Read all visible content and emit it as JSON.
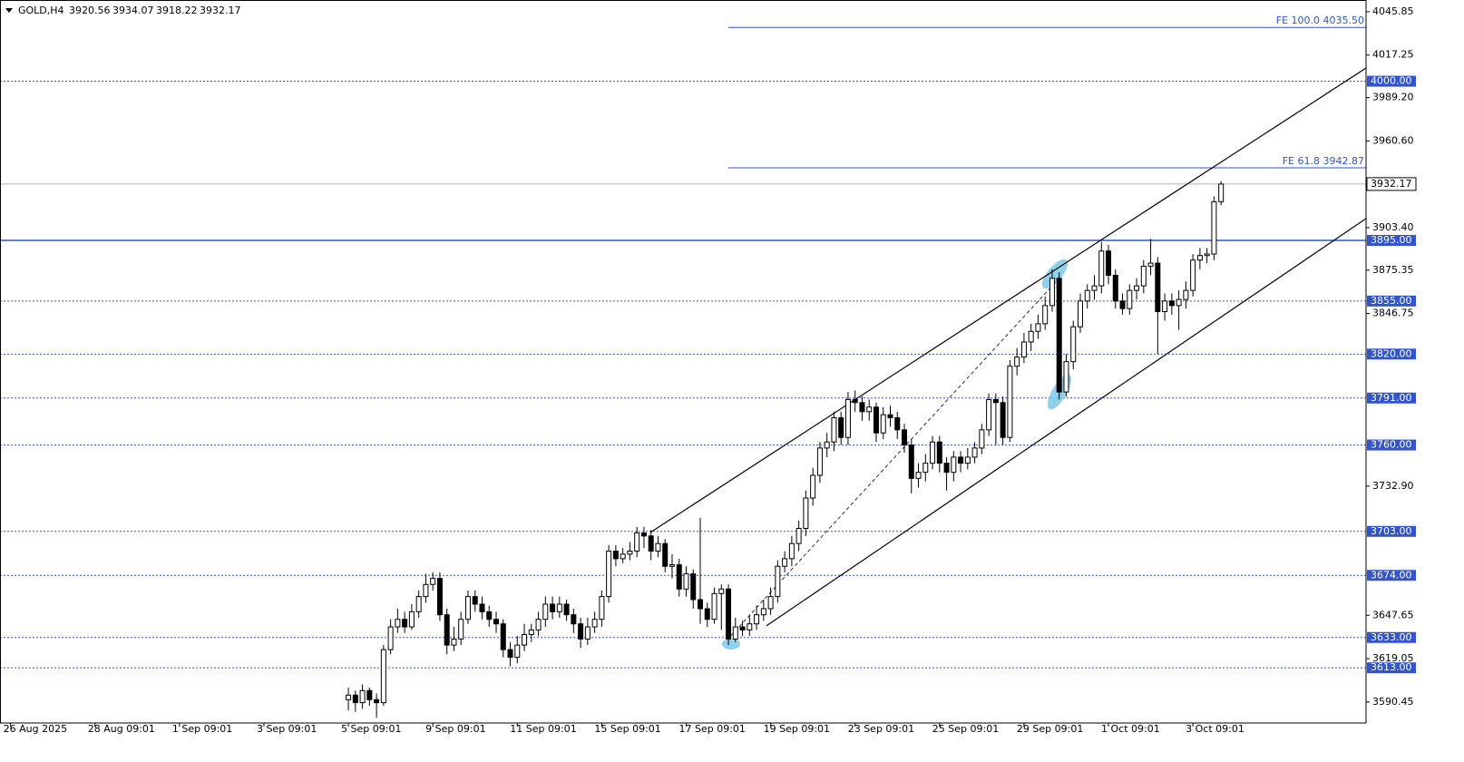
{
  "chart_data": {
    "type": "candlestick",
    "title": "GOLD,H4",
    "bull_color": "#ffffff",
    "bear_color": "#000000",
    "level_color": "#3355cc",
    "xlim": [
      -49.5,
      144.6
    ],
    "ylim": [
      3576.6,
      4053.6
    ],
    "xticks": [
      {
        "value": -48,
        "label": "26 Aug 2025"
      },
      {
        "value": -36,
        "label": "28 Aug 09:01"
      },
      {
        "value": -24,
        "label": "1 Sep 09:01"
      },
      {
        "value": -12,
        "label": "3 Sep 09:01"
      },
      {
        "value": 0,
        "label": "5 Sep 09:01"
      },
      {
        "value": 12,
        "label": "9 Sep 09:01"
      },
      {
        "value": 24,
        "label": "11 Sep 09:01"
      },
      {
        "value": 36,
        "label": "15 Sep 09:01"
      },
      {
        "value": 48,
        "label": "17 Sep 09:01"
      },
      {
        "value": 60,
        "label": "19 Sep 09:01"
      },
      {
        "value": 72,
        "label": "23 Sep 09:01"
      },
      {
        "value": 84,
        "label": "25 Sep 09:01"
      },
      {
        "value": 96,
        "label": "29 Sep 09:01"
      },
      {
        "value": 108,
        "label": "1 Oct 09:01"
      },
      {
        "value": 120,
        "label": "3 Oct 09:01"
      }
    ],
    "yticks": [
      4045.85,
      4017.25,
      {
        "value": 3989.2,
        "label": "3989.20"
      },
      {
        "value": 3960.6,
        "label": "3960.60"
      },
      {
        "value": 3903.4,
        "label": "3903.40"
      },
      3875.35,
      3846.75,
      {
        "value": 3732.9,
        "label": "3732.90"
      },
      3647.65,
      3619.05,
      3590.45
    ],
    "levels": [
      {
        "value": 4000,
        "label": "4000.00",
        "style": "dotted"
      },
      {
        "value": 3895,
        "label": "3895.00",
        "style": "solid"
      },
      {
        "value": 3855,
        "label": "3855.00",
        "style": "dotted"
      },
      {
        "value": 3820,
        "label": "3820.00",
        "style": "dotted"
      },
      {
        "value": 3791,
        "label": "3791.00",
        "style": "dotted"
      },
      {
        "value": 3760,
        "label": "3760.00",
        "style": "dotted"
      },
      {
        "value": 3703,
        "label": "3703.00",
        "style": "dotted"
      },
      {
        "value": 3674,
        "label": "3674.00",
        "style": "dotted"
      },
      {
        "value": 3633,
        "label": "3633.00",
        "style": "dotted"
      },
      {
        "value": 3613,
        "label": "3613.00",
        "style": "dotted"
      }
    ],
    "fib_levels": [
      {
        "value": 4035.5,
        "label": "FE 100.0 4035.50"
      },
      {
        "value": 3942.87,
        "label": "FE 61.8 3942.87"
      }
    ],
    "channel": {
      "upper": [
        [
          42.9,
          3702.3
        ],
        [
          144.6,
          4008.7
        ]
      ],
      "lower": [
        [
          59.4,
          3640.7
        ],
        [
          144.6,
          3909.4
        ]
      ],
      "dashed": [
        [
          54.3,
          3634
        ],
        [
          100.6,
          3868
        ]
      ]
    },
    "ohlc": [
      [
        3592,
        3600,
        3585,
        3595
      ],
      [
        3595,
        3598,
        3584,
        3590
      ],
      [
        3590,
        3602,
        3586,
        3598
      ],
      [
        3598,
        3600,
        3588,
        3592
      ],
      [
        3592,
        3596,
        3580,
        3590
      ],
      [
        3590,
        3628,
        3588,
        3625
      ],
      [
        3625,
        3645,
        3622,
        3640
      ],
      [
        3640,
        3652,
        3636,
        3645
      ],
      [
        3645,
        3650,
        3636,
        3640
      ],
      [
        3640,
        3655,
        3638,
        3650
      ],
      [
        3650,
        3664,
        3646,
        3660
      ],
      [
        3660,
        3675,
        3656,
        3668
      ],
      [
        3668,
        3676,
        3664,
        3672
      ],
      [
        3672,
        3676,
        3644,
        3648
      ],
      [
        3648,
        3652,
        3622,
        3628
      ],
      [
        3628,
        3640,
        3624,
        3632
      ],
      [
        3632,
        3650,
        3628,
        3645
      ],
      [
        3645,
        3664,
        3642,
        3660
      ],
      [
        3660,
        3664,
        3650,
        3655
      ],
      [
        3655,
        3660,
        3645,
        3650
      ],
      [
        3650,
        3654,
        3640,
        3645
      ],
      [
        3645,
        3650,
        3636,
        3642
      ],
      [
        3642,
        3645,
        3620,
        3625
      ],
      [
        3625,
        3630,
        3614,
        3620
      ],
      [
        3620,
        3634,
        3616,
        3628
      ],
      [
        3628,
        3642,
        3624,
        3635
      ],
      [
        3635,
        3642,
        3630,
        3638
      ],
      [
        3638,
        3650,
        3634,
        3645
      ],
      [
        3645,
        3660,
        3640,
        3655
      ],
      [
        3655,
        3660,
        3645,
        3650
      ],
      [
        3650,
        3660,
        3646,
        3655
      ],
      [
        3655,
        3658,
        3644,
        3648
      ],
      [
        3648,
        3652,
        3636,
        3642
      ],
      [
        3642,
        3646,
        3626,
        3632
      ],
      [
        3632,
        3646,
        3628,
        3640
      ],
      [
        3640,
        3650,
        3636,
        3645
      ],
      [
        3645,
        3664,
        3640,
        3660
      ],
      [
        3660,
        3694,
        3656,
        3690
      ],
      [
        3690,
        3694,
        3680,
        3685
      ],
      [
        3685,
        3692,
        3682,
        3688
      ],
      [
        3688,
        3696,
        3684,
        3690
      ],
      [
        3690,
        3706,
        3686,
        3702
      ],
      [
        3702,
        3706,
        3692,
        3700
      ],
      [
        3700,
        3704,
        3684,
        3690
      ],
      [
        3690,
        3700,
        3686,
        3695
      ],
      [
        3695,
        3698,
        3676,
        3680
      ],
      [
        3680,
        3688,
        3672,
        3681
      ],
      [
        3681,
        3685,
        3660,
        3665
      ],
      [
        3665,
        3680,
        3660,
        3675
      ],
      [
        3675,
        3678,
        3652,
        3658
      ],
      [
        3658,
        3712,
        3642,
        3652
      ],
      [
        3652,
        3656,
        3640,
        3645
      ],
      [
        3645,
        3666,
        3642,
        3662
      ],
      [
        3662,
        3668,
        3638,
        3665
      ],
      [
        3665,
        3668,
        3628,
        3632
      ],
      [
        3632,
        3646,
        3630,
        3640
      ],
      [
        3640,
        3644,
        3634,
        3638
      ],
      [
        3638,
        3648,
        3634,
        3642
      ],
      [
        3642,
        3654,
        3638,
        3648
      ],
      [
        3648,
        3658,
        3644,
        3652
      ],
      [
        3652,
        3666,
        3648,
        3660
      ],
      [
        3660,
        3684,
        3656,
        3680
      ],
      [
        3680,
        3690,
        3676,
        3685
      ],
      [
        3685,
        3700,
        3680,
        3695
      ],
      [
        3695,
        3710,
        3690,
        3705
      ],
      [
        3705,
        3730,
        3700,
        3725
      ],
      [
        3725,
        3745,
        3720,
        3740
      ],
      [
        3740,
        3762,
        3735,
        3758
      ],
      [
        3758,
        3768,
        3752,
        3762
      ],
      [
        3762,
        3782,
        3756,
        3778
      ],
      [
        3778,
        3782,
        3760,
        3765
      ],
      [
        3765,
        3795,
        3760,
        3790
      ],
      [
        3790,
        3796,
        3782,
        3788
      ],
      [
        3788,
        3792,
        3776,
        3782
      ],
      [
        3782,
        3790,
        3776,
        3785
      ],
      [
        3785,
        3788,
        3762,
        3768
      ],
      [
        3768,
        3785,
        3764,
        3780
      ],
      [
        3780,
        3786,
        3772,
        3778
      ],
      [
        3778,
        3782,
        3764,
        3770
      ],
      [
        3770,
        3774,
        3755,
        3760
      ],
      [
        3760,
        3764,
        3728,
        3738
      ],
      [
        3738,
        3748,
        3732,
        3742
      ],
      [
        3742,
        3754,
        3736,
        3748
      ],
      [
        3748,
        3766,
        3744,
        3762
      ],
      [
        3762,
        3766,
        3742,
        3748
      ],
      [
        3748,
        3752,
        3730,
        3742
      ],
      [
        3742,
        3756,
        3736,
        3752
      ],
      [
        3752,
        3756,
        3742,
        3748
      ],
      [
        3748,
        3758,
        3744,
        3752
      ],
      [
        3752,
        3762,
        3748,
        3758
      ],
      [
        3758,
        3774,
        3754,
        3770
      ],
      [
        3770,
        3794,
        3766,
        3790
      ],
      [
        3790,
        3794,
        3760,
        3788
      ],
      [
        3788,
        3792,
        3760,
        3765
      ],
      [
        3765,
        3816,
        3762,
        3812
      ],
      [
        3812,
        3824,
        3806,
        3818
      ],
      [
        3818,
        3834,
        3814,
        3828
      ],
      [
        3828,
        3840,
        3822,
        3835
      ],
      [
        3835,
        3846,
        3830,
        3840
      ],
      [
        3840,
        3858,
        3836,
        3852
      ],
      [
        3852,
        3876,
        3848,
        3870
      ],
      [
        3870,
        3874,
        3790,
        3795
      ],
      [
        3795,
        3820,
        3792,
        3815
      ],
      [
        3815,
        3842,
        3810,
        3838
      ],
      [
        3838,
        3860,
        3834,
        3855
      ],
      [
        3855,
        3866,
        3850,
        3862
      ],
      [
        3862,
        3872,
        3856,
        3865
      ],
      [
        3865,
        3894,
        3860,
        3888
      ],
      [
        3888,
        3892,
        3866,
        3872
      ],
      [
        3872,
        3876,
        3850,
        3855
      ],
      [
        3855,
        3860,
        3846,
        3850
      ],
      [
        3850,
        3866,
        3846,
        3862
      ],
      [
        3862,
        3870,
        3856,
        3865
      ],
      [
        3865,
        3882,
        3860,
        3878
      ],
      [
        3878,
        3896,
        3872,
        3880
      ],
      [
        3880,
        3884,
        3820,
        3848
      ],
      [
        3848,
        3860,
        3842,
        3855
      ],
      [
        3855,
        3860,
        3846,
        3852
      ],
      [
        3852,
        3862,
        3836,
        3856
      ],
      [
        3856,
        3868,
        3850,
        3862
      ],
      [
        3862,
        3886,
        3858,
        3882
      ],
      [
        3882,
        3890,
        3876,
        3885
      ],
      [
        3885,
        3890,
        3880,
        3886
      ],
      [
        3886,
        3924,
        3882,
        3920.56
      ],
      [
        3920.56,
        3934.07,
        3918.22,
        3932.17
      ]
    ]
  }
}
